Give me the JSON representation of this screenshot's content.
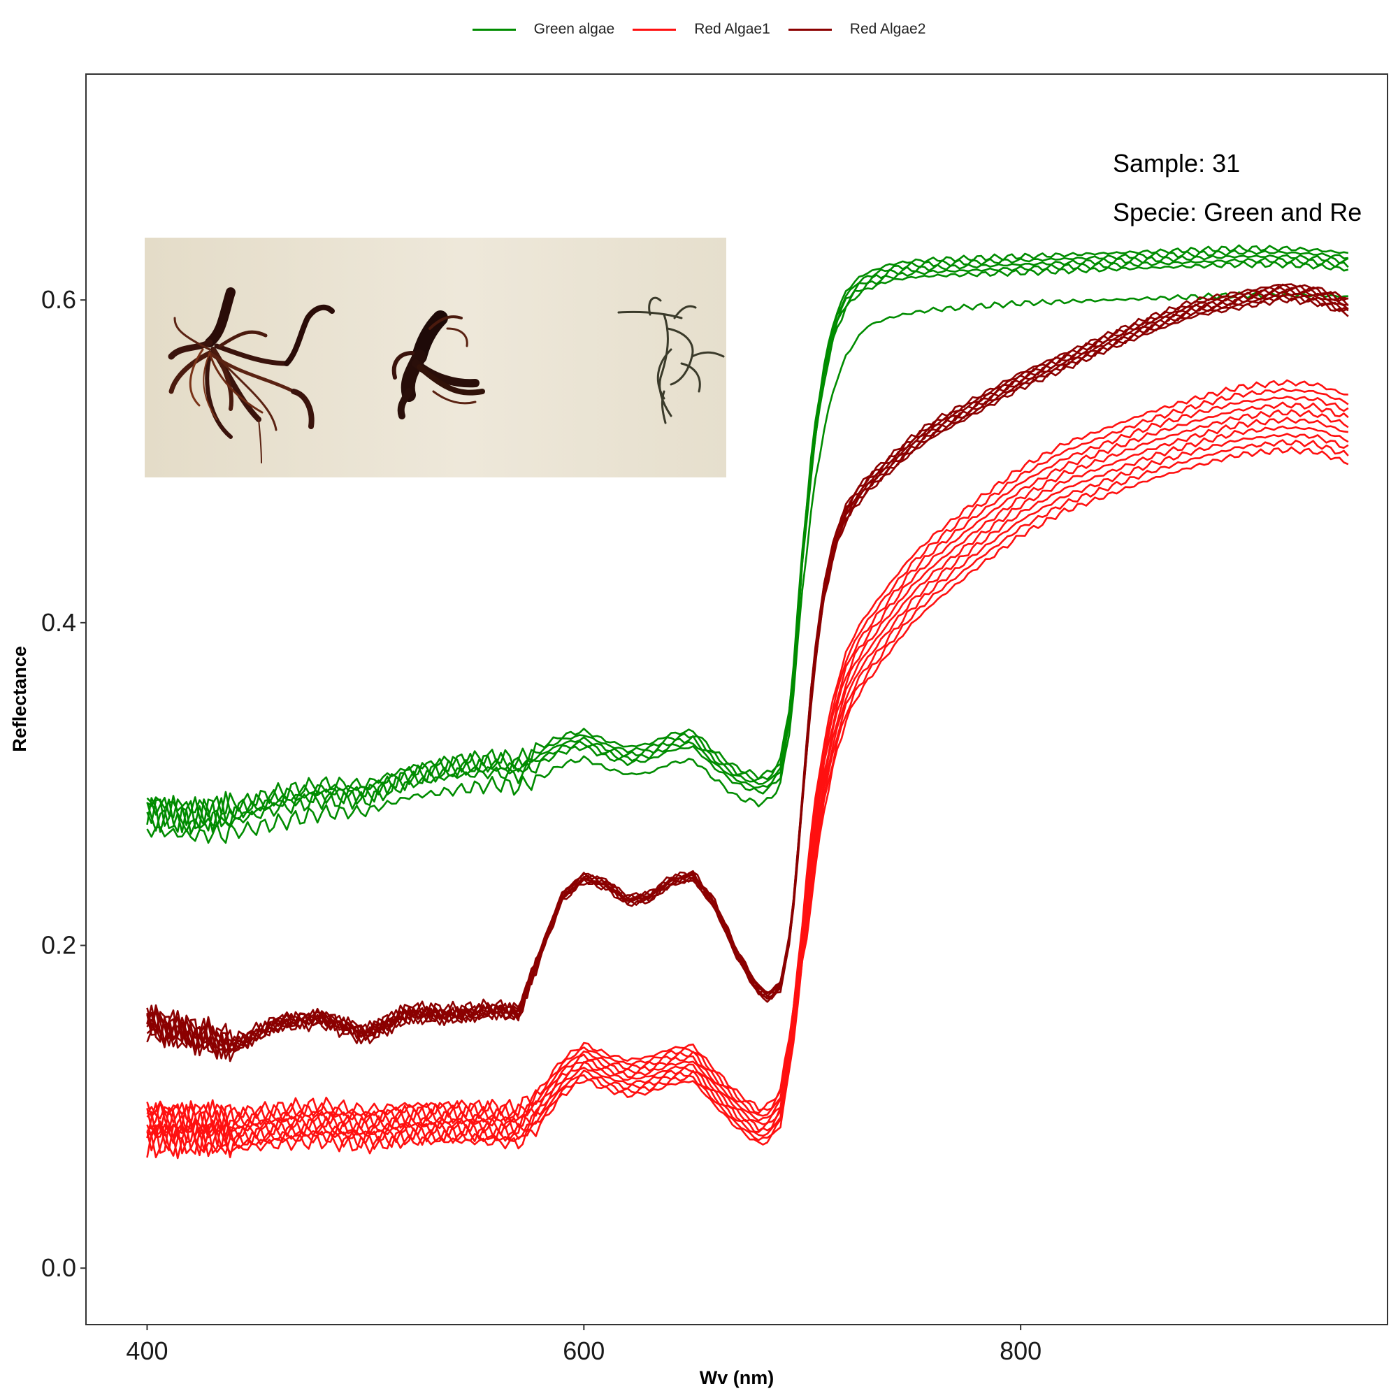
{
  "chart_data": {
    "type": "line",
    "xlabel": "Wv (nm)",
    "ylabel": "Reflectance",
    "xlim": [
      372,
      968
    ],
    "ylim": [
      -0.035,
      0.74
    ],
    "x_ticks": [
      400,
      600,
      800
    ],
    "x_tick_labels": [
      "400",
      "600",
      "800"
    ],
    "y_ticks": [
      0.0,
      0.2,
      0.4,
      0.6
    ],
    "y_tick_labels": [
      "0.0",
      "0.2",
      "0.4",
      "0.6"
    ],
    "grid": false,
    "legend_position": "top",
    "annotations": [
      "Sample: 31",
      "Specie: Green and Re"
    ],
    "inset_photo": "algae-specimens-photo",
    "x": [
      400,
      420,
      440,
      460,
      480,
      500,
      520,
      540,
      560,
      570,
      580,
      590,
      600,
      610,
      620,
      630,
      640,
      650,
      660,
      670,
      680,
      685,
      690,
      695,
      700,
      705,
      710,
      715,
      720,
      725,
      730,
      740,
      750,
      760,
      780,
      800,
      820,
      840,
      860,
      880,
      900,
      920,
      935,
      950
    ],
    "series": [
      {
        "name": "Green algae",
        "color": "#008C00",
        "replicates": 6,
        "values": [
          0.285,
          0.28,
          0.282,
          0.29,
          0.295,
          0.295,
          0.305,
          0.31,
          0.312,
          0.31,
          0.318,
          0.325,
          0.328,
          0.322,
          0.318,
          0.32,
          0.326,
          0.328,
          0.315,
          0.305,
          0.3,
          0.302,
          0.31,
          0.35,
          0.44,
          0.51,
          0.555,
          0.585,
          0.6,
          0.608,
          0.612,
          0.617,
          0.619,
          0.62,
          0.621,
          0.622,
          0.623,
          0.624,
          0.625,
          0.626,
          0.627,
          0.627,
          0.626,
          0.624
        ],
        "outlier_values": [
          0.272,
          0.268,
          0.27,
          0.276,
          0.282,
          0.283,
          0.292,
          0.296,
          0.3,
          0.298,
          0.304,
          0.312,
          0.316,
          0.31,
          0.306,
          0.307,
          0.313,
          0.315,
          0.303,
          0.292,
          0.288,
          0.29,
          0.3,
          0.34,
          0.42,
          0.48,
          0.52,
          0.548,
          0.565,
          0.576,
          0.584,
          0.589,
          0.592,
          0.594,
          0.596,
          0.598,
          0.599,
          0.6,
          0.601,
          0.602,
          0.603,
          0.603,
          0.603,
          0.602
        ]
      },
      {
        "name": "Red Algae1",
        "color": "#FF1010",
        "replicates": 10,
        "values": [
          0.088,
          0.087,
          0.085,
          0.088,
          0.09,
          0.087,
          0.09,
          0.09,
          0.089,
          0.088,
          0.1,
          0.118,
          0.128,
          0.122,
          0.118,
          0.12,
          0.125,
          0.127,
          0.112,
          0.098,
          0.088,
          0.09,
          0.1,
          0.14,
          0.2,
          0.26,
          0.305,
          0.337,
          0.36,
          0.375,
          0.385,
          0.403,
          0.42,
          0.433,
          0.455,
          0.475,
          0.49,
          0.5,
          0.51,
          0.518,
          0.525,
          0.528,
          0.527,
          0.52
        ],
        "spread": 0.022
      },
      {
        "name": "Red Algae2",
        "color": "#8B0000",
        "replicates": 8,
        "values": [
          0.152,
          0.145,
          0.138,
          0.152,
          0.155,
          0.145,
          0.158,
          0.157,
          0.16,
          0.158,
          0.195,
          0.23,
          0.242,
          0.238,
          0.228,
          0.23,
          0.24,
          0.243,
          0.225,
          0.195,
          0.172,
          0.168,
          0.175,
          0.21,
          0.29,
          0.37,
          0.42,
          0.45,
          0.468,
          0.478,
          0.486,
          0.498,
          0.51,
          0.52,
          0.535,
          0.55,
          0.562,
          0.574,
          0.585,
          0.595,
          0.6,
          0.605,
          0.603,
          0.596
        ],
        "spread": 0.005
      }
    ]
  }
}
